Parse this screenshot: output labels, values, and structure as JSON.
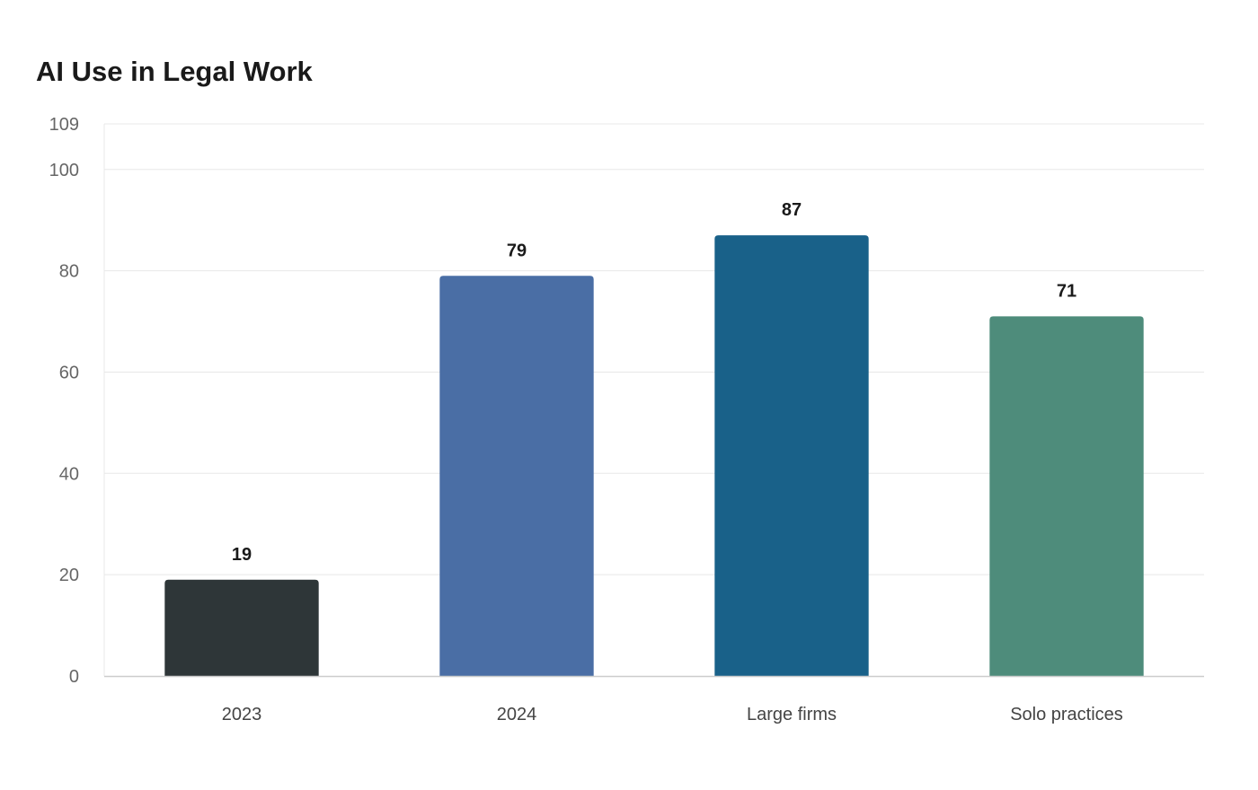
{
  "chart_data": {
    "type": "bar",
    "title": "AI Use in Legal Work",
    "xlabel": "",
    "ylabel": "",
    "categories": [
      "2023",
      "2024",
      "Large firms",
      "Solo practices"
    ],
    "values": [
      19,
      79,
      87,
      71
    ],
    "colors": [
      "#2e3638",
      "#4a6ea5",
      "#196189",
      "#4e8c7b"
    ],
    "ylim": [
      0,
      109
    ],
    "yticks": [
      0,
      20,
      40,
      60,
      80,
      100,
      109
    ],
    "grid": true,
    "legend": "none",
    "grid_color": "#e8e8e8",
    "axis_color": "#cccccc"
  }
}
